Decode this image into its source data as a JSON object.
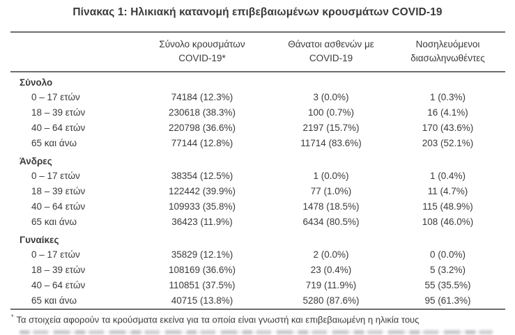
{
  "title": "Πίνακας 1: Ηλικιακή κατανομή επιβεβαιωμένων κρουσμάτων COVID-19",
  "header": {
    "cases": {
      "line1": "Σύνολο κρουσμάτων",
      "line2": "COVID-19*"
    },
    "deaths": {
      "line1": "Θάνατοι ασθενών με",
      "line2": "COVID-19"
    },
    "intubated": {
      "line1": "Νοσηλευόμενοι",
      "line2": "διασωληνωθέντες"
    }
  },
  "sections": [
    {
      "label": "Σύνολο",
      "rows": [
        {
          "label": "0 – 17 ετών",
          "cases": "74184 (12.3%)",
          "deaths": "3 (0.0%)",
          "intubated": "1 (0.3%)"
        },
        {
          "label": "18 – 39 ετών",
          "cases": "230618 (38.3%)",
          "deaths": "100 (0.7%)",
          "intubated": "16 (4.1%)"
        },
        {
          "label": "40 – 64 ετών",
          "cases": "220798 (36.6%)",
          "deaths": "2197 (15.7%)",
          "intubated": "170 (43.6%)"
        },
        {
          "label": "65 και άνω",
          "cases": "77144 (12.8%)",
          "deaths": "11714 (83.6%)",
          "intubated": "203 (52.1%)"
        }
      ]
    },
    {
      "label": "Άνδρες",
      "rows": [
        {
          "label": "0 – 17 ετών",
          "cases": "38354 (12.5%)",
          "deaths": "1 (0.0%)",
          "intubated": "1 (0.4%)"
        },
        {
          "label": "18 – 39 ετών",
          "cases": "122442 (39.9%)",
          "deaths": "77 (1.0%)",
          "intubated": "11 (4.7%)"
        },
        {
          "label": "40 – 64 ετών",
          "cases": "109933 (35.8%)",
          "deaths": "1478 (18.5%)",
          "intubated": "115 (48.9%)"
        },
        {
          "label": "65 και άνω",
          "cases": "36423 (11.9%)",
          "deaths": "6434 (80.5%)",
          "intubated": "108 (46.0%)"
        }
      ]
    },
    {
      "label": "Γυναίκες",
      "rows": [
        {
          "label": "0 – 17 ετών",
          "cases": "35829 (12.1%)",
          "deaths": "2 (0.0%)",
          "intubated": "0 (0.0%)"
        },
        {
          "label": "18 – 39 ετών",
          "cases": "108169 (36.6%)",
          "deaths": "23 (0.4%)",
          "intubated": "5 (3.2%)"
        },
        {
          "label": "40 – 64 ετών",
          "cases": "110851 (37.5%)",
          "deaths": "719 (11.9%)",
          "intubated": "55 (35.5%)"
        },
        {
          "label": "65 και άνω",
          "cases": "40715 (13.8%)",
          "deaths": "5280 (87.6%)",
          "intubated": "95 (61.3%)"
        }
      ]
    }
  ],
  "footnote": {
    "marker": "*",
    "text": "Τα στοιχεία αφορούν τα κρούσματα εκείνα για τα οποία είναι γνωστή και επιβεβαιωμένη η ηλικία τους"
  },
  "colors": {
    "text": "#3a3a3a",
    "rule": "#6d6d6d"
  }
}
